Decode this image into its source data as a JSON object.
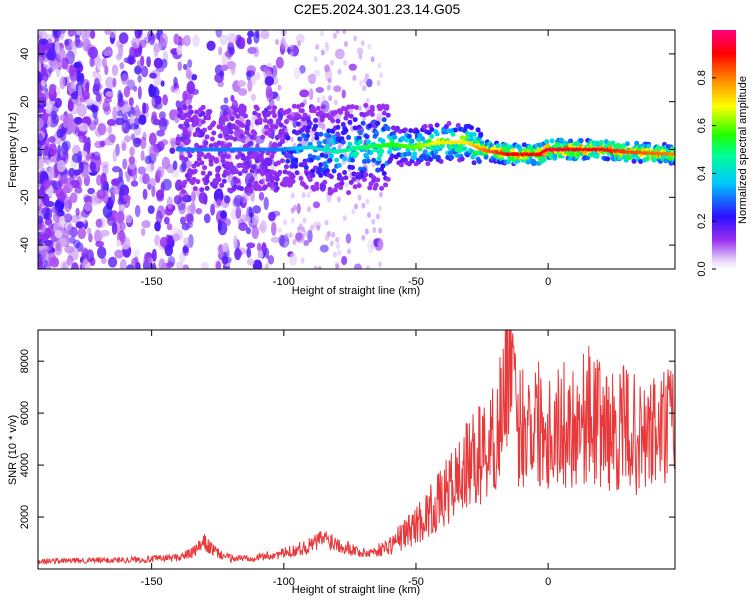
{
  "title": "C2E5.2024.301.23.14.G05",
  "chart_data": [
    {
      "type": "heatmap",
      "name": "spectrogram",
      "xlabel": "Height of straight line (km)",
      "ylabel": "Frequency (Hz)",
      "xlim": [
        -193,
        48
      ],
      "ylim": [
        -50,
        50
      ],
      "xticks": [
        -150,
        -100,
        -50,
        0
      ],
      "yticks": [
        -40,
        -20,
        0,
        20,
        40
      ],
      "colorbar": {
        "label": "Normalized spectral amplitude",
        "range": [
          0,
          1
        ],
        "ticks": [
          0.0,
          0.2,
          0.4,
          0.6,
          0.8
        ],
        "tick_labels": [
          "0.0",
          "0.2",
          "0.4",
          "0.6",
          "0.8"
        ],
        "colormap": "rainbow (white/lavender → violet → blue → cyan → green → yellow → red → magenta)"
      },
      "ridge": [
        {
          "x": -100,
          "y": 0,
          "amplitude": 0.3
        },
        {
          "x": -90,
          "y": 1,
          "amplitude": 0.4
        },
        {
          "x": -80,
          "y": -1,
          "amplitude": 0.45
        },
        {
          "x": -70,
          "y": 1,
          "amplitude": 0.5
        },
        {
          "x": -60,
          "y": 2,
          "amplitude": 0.55
        },
        {
          "x": -50,
          "y": 1,
          "amplitude": 0.6
        },
        {
          "x": -40,
          "y": 3,
          "amplitude": 0.7
        },
        {
          "x": -30,
          "y": 3,
          "amplitude": 0.7
        },
        {
          "x": -25,
          "y": 0,
          "amplitude": 0.8
        },
        {
          "x": -15,
          "y": -2,
          "amplitude": 0.9
        },
        {
          "x": -3,
          "y": -2,
          "amplitude": 0.9
        },
        {
          "x": 0,
          "y": 0,
          "amplitude": 0.95
        },
        {
          "x": 20,
          "y": 0,
          "amplitude": 0.9
        },
        {
          "x": 30,
          "y": -1,
          "amplitude": 0.85
        },
        {
          "x": 48,
          "y": -2,
          "amplitude": 0.8
        }
      ]
    },
    {
      "type": "line",
      "name": "snr",
      "xlabel": "Height of straight line (km)",
      "ylabel": "SNR (10 * v/v)",
      "xlim": [
        -193,
        48
      ],
      "ylim": [
        0,
        9200
      ],
      "xticks": [
        -150,
        -100,
        -50,
        0
      ],
      "yticks": [
        2000,
        4000,
        6000,
        8000
      ],
      "series": [
        {
          "color": "#e8383a",
          "x": [
            -193,
            -180,
            -165,
            -150,
            -140,
            -135,
            -130,
            -125,
            -120,
            -110,
            -100,
            -90,
            -85,
            -80,
            -75,
            -70,
            -65,
            -60,
            -55,
            -50,
            -45,
            -40,
            -35,
            -30,
            -25,
            -20,
            -17,
            -15,
            -12,
            -10,
            -5,
            0,
            5,
            10,
            15,
            20,
            25,
            30,
            35,
            40,
            48
          ],
          "y": [
            300,
            320,
            340,
            380,
            450,
            600,
            1000,
            600,
            400,
            450,
            600,
            900,
            1200,
            1000,
            800,
            600,
            700,
            900,
            1300,
            1700,
            2200,
            2700,
            3400,
            4000,
            4500,
            5000,
            6500,
            9200,
            5200,
            5600,
            5800,
            5400,
            5500,
            5600,
            6000,
            5600,
            5200,
            5500,
            4900,
            5200,
            5600
          ]
        }
      ]
    }
  ]
}
